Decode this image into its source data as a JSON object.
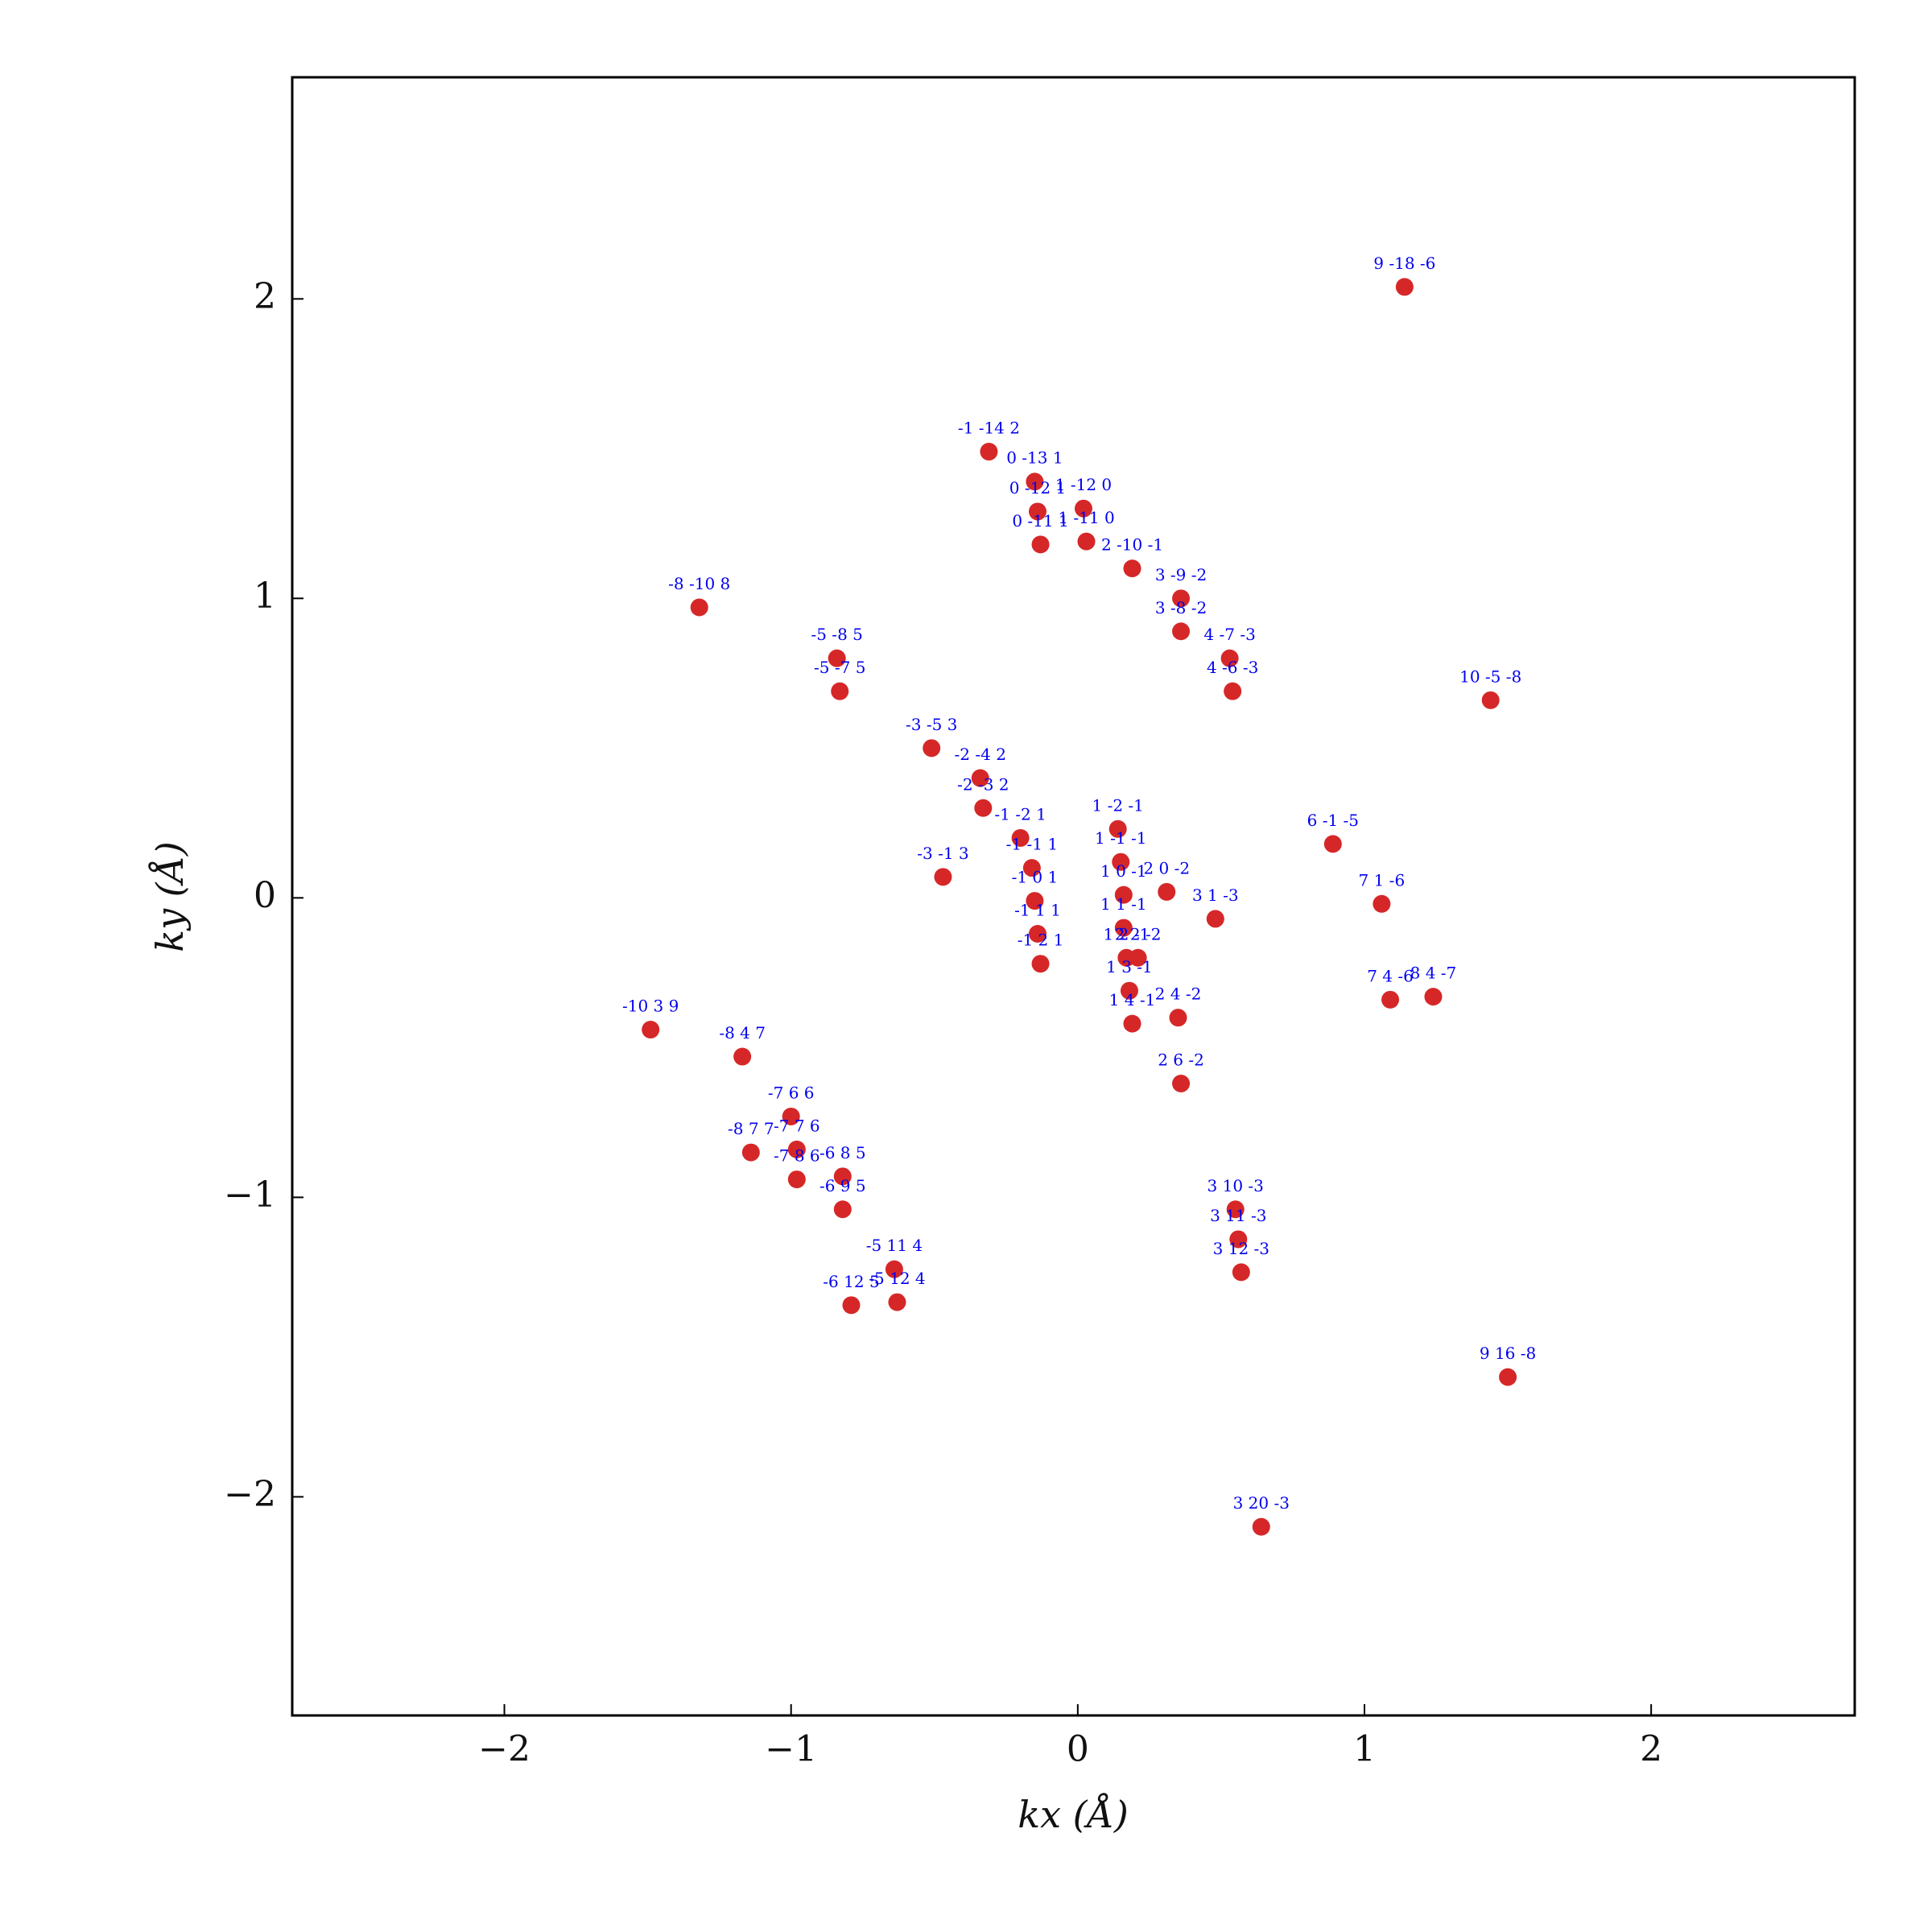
{
  "chart_data": {
    "type": "scatter",
    "xlabel": "kx (Å)",
    "ylabel": "ky (Å)",
    "color": "#d62728",
    "label_color": "#0000ee",
    "xlim": [
      -2.74,
      2.71
    ],
    "ylim": [
      -2.73,
      2.74
    ],
    "xticks": [
      {
        "value": -2,
        "label": "−2"
      },
      {
        "value": -1,
        "label": "−1"
      },
      0,
      1,
      2
    ],
    "yticks": [
      {
        "value": -2,
        "label": "−2"
      },
      {
        "value": -1,
        "label": "−1"
      },
      0,
      1,
      2
    ],
    "x": [
      1.14,
      -0.31,
      -0.15,
      0.02,
      -0.14,
      0.03,
      -0.13,
      0.19,
      0.36,
      0.36,
      0.53,
      0.54,
      -1.32,
      -0.84,
      -0.83,
      1.44,
      -0.51,
      -0.34,
      -0.33,
      -0.2,
      -0.16,
      0.14,
      0.15,
      0.89,
      -0.47,
      0.31,
      -0.15,
      0.16,
      0.48,
      1.06,
      -0.14,
      0.16,
      0.17,
      0.21,
      -0.13,
      0.18,
      1.09,
      1.24,
      0.19,
      0.35,
      -1.49,
      -1.17,
      0.36,
      -1.0,
      -1.14,
      -0.98,
      -0.98,
      -0.82,
      -0.82,
      0.55,
      0.56,
      0.57,
      -0.64,
      -0.63,
      -0.79,
      1.5,
      0.64
    ],
    "y": [
      2.04,
      1.49,
      1.39,
      1.3,
      1.29,
      1.19,
      1.18,
      1.1,
      1.0,
      0.89,
      0.8,
      0.69,
      0.97,
      0.8,
      0.69,
      0.66,
      0.5,
      0.4,
      0.3,
      0.2,
      0.1,
      0.23,
      0.12,
      0.18,
      0.07,
      0.02,
      -0.01,
      0.01,
      -0.07,
      -0.02,
      -0.12,
      -0.1,
      -0.2,
      -0.2,
      -0.22,
      -0.31,
      -0.34,
      -0.33,
      -0.42,
      -0.4,
      -0.44,
      -0.53,
      -0.62,
      -0.73,
      -0.85,
      -0.84,
      -0.94,
      -0.93,
      -1.04,
      -1.04,
      -1.14,
      -1.25,
      -1.24,
      -1.35,
      -1.36,
      -1.6,
      -2.1
    ],
    "labels": [
      "9 -18 -6",
      "-1 -14 2",
      "0 -13 1",
      "1 -12 0",
      "0 -12 1",
      "1 -11 0",
      "0 -11 1",
      "2 -10 -1",
      "3 -9 -2",
      "3 -8 -2",
      "4 -7 -3",
      "4 -6 -3",
      "-8 -10 8",
      "-5 -8 5",
      "-5 -7 5",
      "10 -5 -8",
      "-3 -5 3",
      "-2 -4 2",
      "-2 -3 2",
      "-1 -2 1",
      "-1 -1 1",
      "1 -2 -1",
      "1 -1 -1",
      "6 -1 -5",
      "-3 -1 3",
      "2 0 -2",
      "-1 0 1",
      "1 0 -1",
      "3 1 -3",
      "7 1 -6",
      "-1 1 1",
      "1 1 -1",
      "1 2 -1",
      "2 2 -2",
      "-1 2 1",
      "1 3 -1",
      "7 4 -6",
      "8 4 -7",
      "1 4 -1",
      "2 4 -2",
      "-10 3 9",
      "-8 4 7",
      "2 6 -2",
      "-7 6 6",
      "-8 7 7",
      "-7 7 6",
      "-7 8 6",
      "-6 8 5",
      "-6 9 5",
      "3 10 -3",
      "3 11 -3",
      "3 12 -3",
      "-5 11 4",
      "-5 12 4",
      "-6 12 5",
      "9 16 -8",
      "3 20 -3"
    ]
  }
}
